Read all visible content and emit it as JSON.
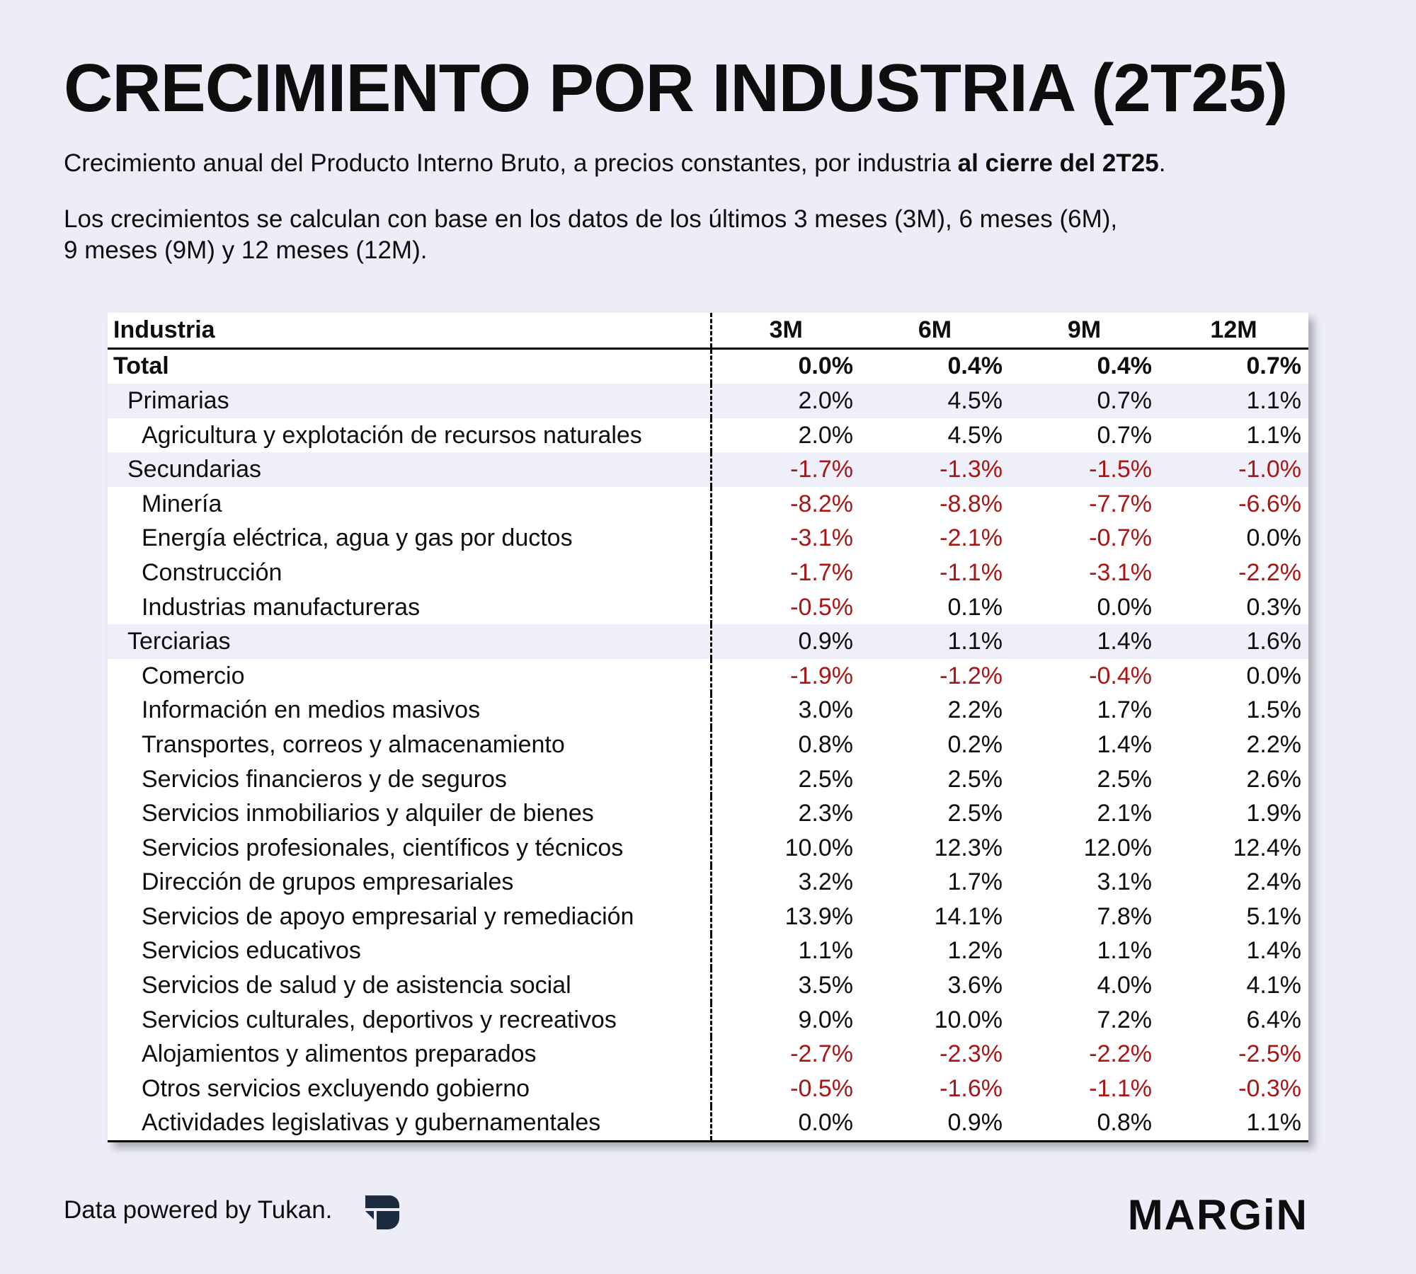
{
  "title": "CRECIMIENTO POR INDUSTRIA (2T25)",
  "subtitle": {
    "text": "Crecimiento anual del Producto Interno Bruto, a precios constantes, por industria ",
    "bold": "al cierre del 2T25",
    "end": "."
  },
  "note": {
    "line1": "Los crecimientos se calculan con base en los datos de los últimos 3 meses (3M), 6 meses (6M),",
    "line2": "9 meses (9M) y 12 meses (12M)."
  },
  "table": {
    "headers": [
      "Industria",
      "3M",
      "6M",
      "9M",
      "12M"
    ],
    "rows": [
      {
        "name": "Total",
        "level": "total",
        "values": [
          "0.0%",
          "0.4%",
          "0.4%",
          "0.7%"
        ]
      },
      {
        "name": "Primarias",
        "level": "group",
        "values": [
          "2.0%",
          "4.5%",
          "0.7%",
          "1.1%"
        ]
      },
      {
        "name": "Agricultura y explotación de recursos naturales",
        "level": "item",
        "values": [
          "2.0%",
          "4.5%",
          "0.7%",
          "1.1%"
        ]
      },
      {
        "name": "Secundarias",
        "level": "group",
        "values": [
          "-1.7%",
          "-1.3%",
          "-1.5%",
          "-1.0%"
        ]
      },
      {
        "name": "Minería",
        "level": "item",
        "values": [
          "-8.2%",
          "-8.8%",
          "-7.7%",
          "-6.6%"
        ]
      },
      {
        "name": "Energía eléctrica, agua y gas por ductos",
        "level": "item",
        "values": [
          "-3.1%",
          "-2.1%",
          "-0.7%",
          "0.0%"
        ]
      },
      {
        "name": "Construcción",
        "level": "item",
        "values": [
          "-1.7%",
          "-1.1%",
          "-3.1%",
          "-2.2%"
        ]
      },
      {
        "name": "Industrias manufactureras",
        "level": "item",
        "values": [
          "-0.5%",
          "0.1%",
          "0.0%",
          "0.3%"
        ]
      },
      {
        "name": "Terciarias",
        "level": "group",
        "values": [
          "0.9%",
          "1.1%",
          "1.4%",
          "1.6%"
        ]
      },
      {
        "name": "Comercio",
        "level": "item",
        "values": [
          "-1.9%",
          "-1.2%",
          "-0.4%",
          "0.0%"
        ]
      },
      {
        "name": "Información en medios masivos",
        "level": "item",
        "values": [
          "3.0%",
          "2.2%",
          "1.7%",
          "1.5%"
        ]
      },
      {
        "name": "Transportes, correos y almacenamiento",
        "level": "item",
        "values": [
          "0.8%",
          "0.2%",
          "1.4%",
          "2.2%"
        ]
      },
      {
        "name": "Servicios financieros y de seguros",
        "level": "item",
        "values": [
          "2.5%",
          "2.5%",
          "2.5%",
          "2.6%"
        ]
      },
      {
        "name": "Servicios inmobiliarios y alquiler de bienes",
        "level": "item",
        "values": [
          "2.3%",
          "2.5%",
          "2.1%",
          "1.9%"
        ]
      },
      {
        "name": "Servicios profesionales, científicos y técnicos",
        "level": "item",
        "values": [
          "10.0%",
          "12.3%",
          "12.0%",
          "12.4%"
        ]
      },
      {
        "name": "Dirección de grupos empresariales",
        "level": "item",
        "values": [
          "3.2%",
          "1.7%",
          "3.1%",
          "2.4%"
        ]
      },
      {
        "name": "Servicios de apoyo empresarial y remediación",
        "level": "item",
        "values": [
          "13.9%",
          "14.1%",
          "7.8%",
          "5.1%"
        ]
      },
      {
        "name": "Servicios educativos",
        "level": "item",
        "values": [
          "1.1%",
          "1.2%",
          "1.1%",
          "1.4%"
        ]
      },
      {
        "name": "Servicios de salud y de asistencia social",
        "level": "item",
        "values": [
          "3.5%",
          "3.6%",
          "4.0%",
          "4.1%"
        ]
      },
      {
        "name": "Servicios culturales, deportivos y recreativos",
        "level": "item",
        "values": [
          "9.0%",
          "10.0%",
          "7.2%",
          "6.4%"
        ]
      },
      {
        "name": "Alojamientos y alimentos preparados",
        "level": "item",
        "values": [
          "-2.7%",
          "-2.3%",
          "-2.2%",
          "-2.5%"
        ]
      },
      {
        "name": "Otros servicios excluyendo gobierno",
        "level": "item",
        "values": [
          "-0.5%",
          "-1.6%",
          "-1.1%",
          "-0.3%"
        ]
      },
      {
        "name": "Actividades legislativas y gubernamentales",
        "level": "item",
        "values": [
          "0.0%",
          "0.9%",
          "0.8%",
          "1.1%"
        ]
      }
    ]
  },
  "colors": {
    "background": "#ecedf7",
    "negative": "#a81616",
    "group_row": "#eeeff8",
    "logo_dark": "#1c2b3d"
  },
  "footer": {
    "credit": "Data powered by Tukan.",
    "tukan_logo_icon": "tukan-logo-icon",
    "brand": "MARGiN"
  }
}
